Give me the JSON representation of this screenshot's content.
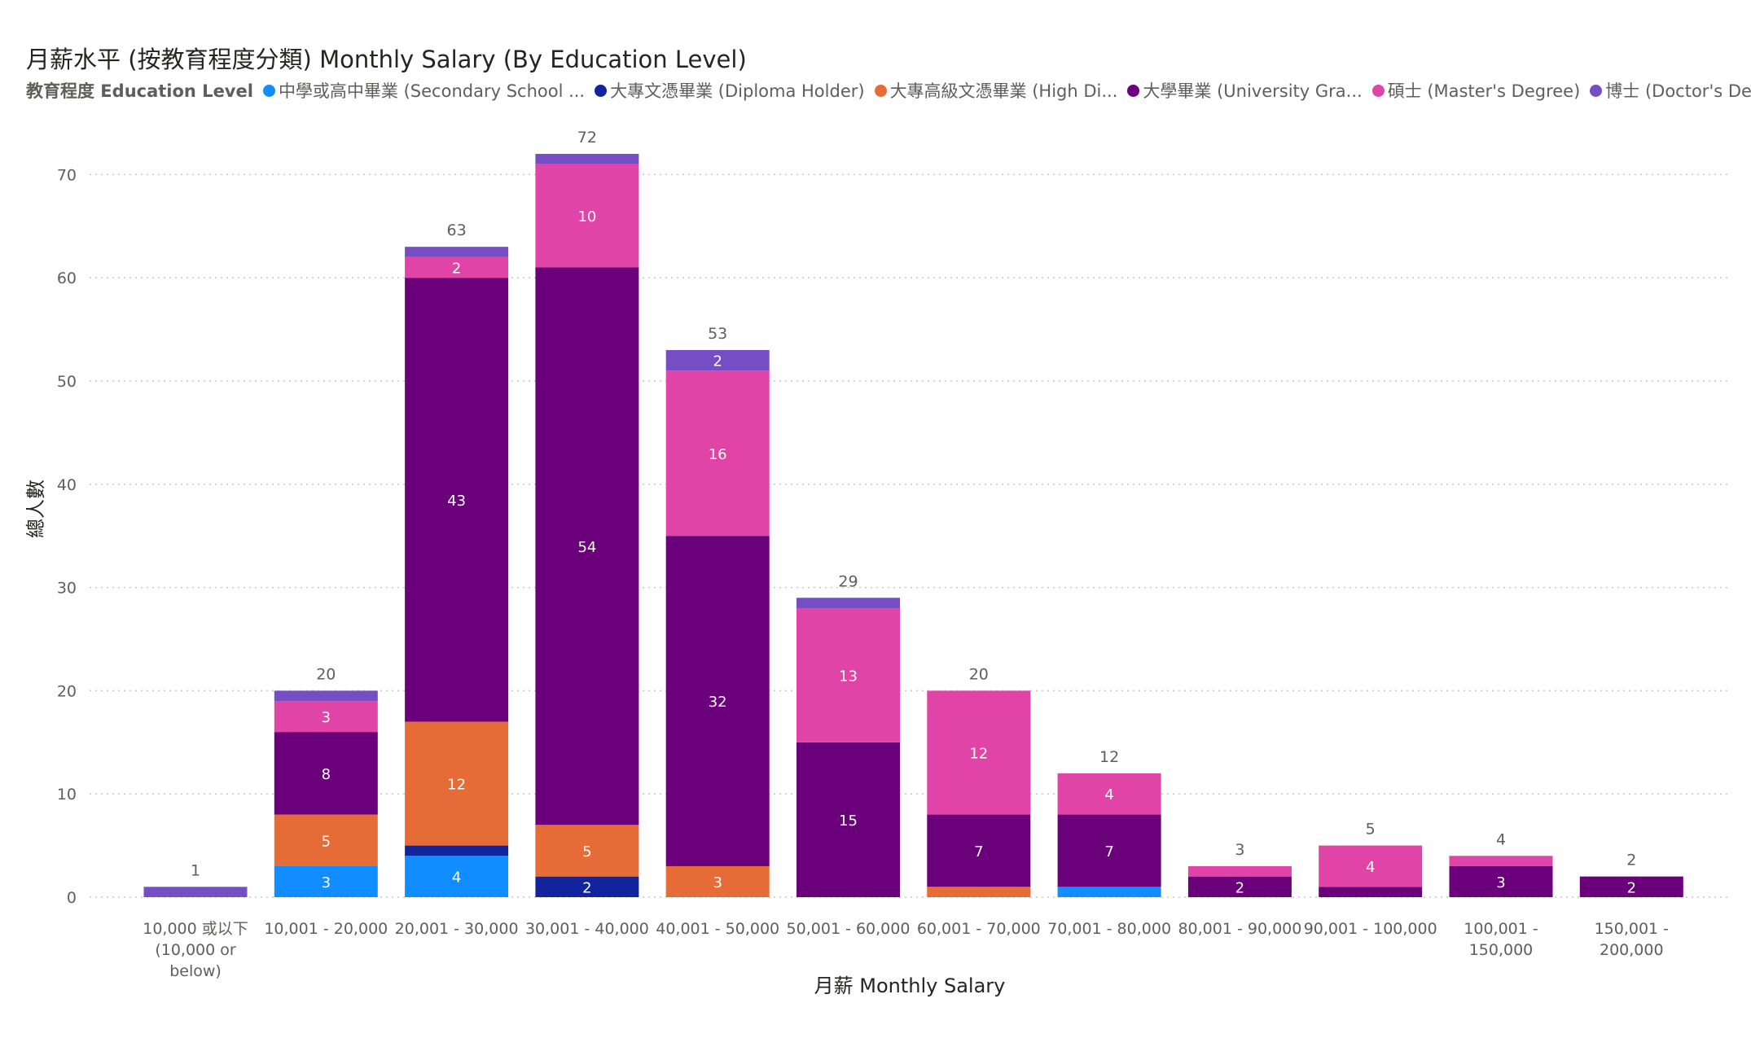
{
  "chart_data": {
    "type": "bar",
    "stacked": true,
    "title": "月薪水平 (按教育程度分類) Monthly Salary (By Education Level)",
    "legend_title": "教育程度 Education Level",
    "legend_placement": "top-left",
    "xlabel": "月薪 Monthly Salary",
    "ylabel": "總人數",
    "ylim": [
      0,
      72
    ],
    "yticks": [
      0,
      10,
      20,
      30,
      40,
      50,
      60,
      70
    ],
    "grid": true,
    "categories": [
      [
        "10,000 或以下",
        "(10,000 or",
        "below)"
      ],
      [
        "10,001 - 20,000"
      ],
      [
        "20,001 - 30,000"
      ],
      [
        "30,001 - 40,000"
      ],
      [
        "40,001 - 50,000"
      ],
      [
        "50,001 - 60,000"
      ],
      [
        "60,001 - 70,000"
      ],
      [
        "70,001 - 80,000"
      ],
      [
        "80,001 - 90,000"
      ],
      [
        "90,001 - 100,000"
      ],
      [
        "100,001 -",
        "150,000"
      ],
      [
        "150,001 -",
        "200,000"
      ]
    ],
    "totals": [
      1,
      20,
      63,
      72,
      53,
      29,
      20,
      12,
      3,
      5,
      4,
      2
    ],
    "series": [
      {
        "name": "中學或高中畢業 (Secondary School ...",
        "color": "#118DFF",
        "values": [
          0,
          3,
          4,
          0,
          0,
          0,
          0,
          1,
          0,
          0,
          0,
          0
        ]
      },
      {
        "name": "大專文憑畢業 (Diploma Holder)",
        "color": "#12239E",
        "values": [
          0,
          0,
          1,
          2,
          0,
          0,
          0,
          0,
          0,
          0,
          0,
          0
        ]
      },
      {
        "name": "大專高級文憑畢業 (High Di...",
        "color": "#E66C37",
        "values": [
          0,
          5,
          12,
          5,
          3,
          0,
          1,
          0,
          0,
          0,
          0,
          0
        ]
      },
      {
        "name": "大學畢業 (University Gra...",
        "color": "#6B007B",
        "values": [
          0,
          8,
          43,
          54,
          32,
          15,
          7,
          7,
          2,
          1,
          3,
          2
        ]
      },
      {
        "name": "碩士 (Master's Degree)",
        "color": "#E044A7",
        "values": [
          0,
          3,
          2,
          10,
          16,
          13,
          12,
          4,
          1,
          4,
          1,
          0
        ]
      },
      {
        "name": "博士 (Doctor's Degr...",
        "color": "#744EC2",
        "values": [
          1,
          1,
          1,
          1,
          2,
          1,
          0,
          0,
          0,
          0,
          0,
          0
        ]
      }
    ]
  }
}
